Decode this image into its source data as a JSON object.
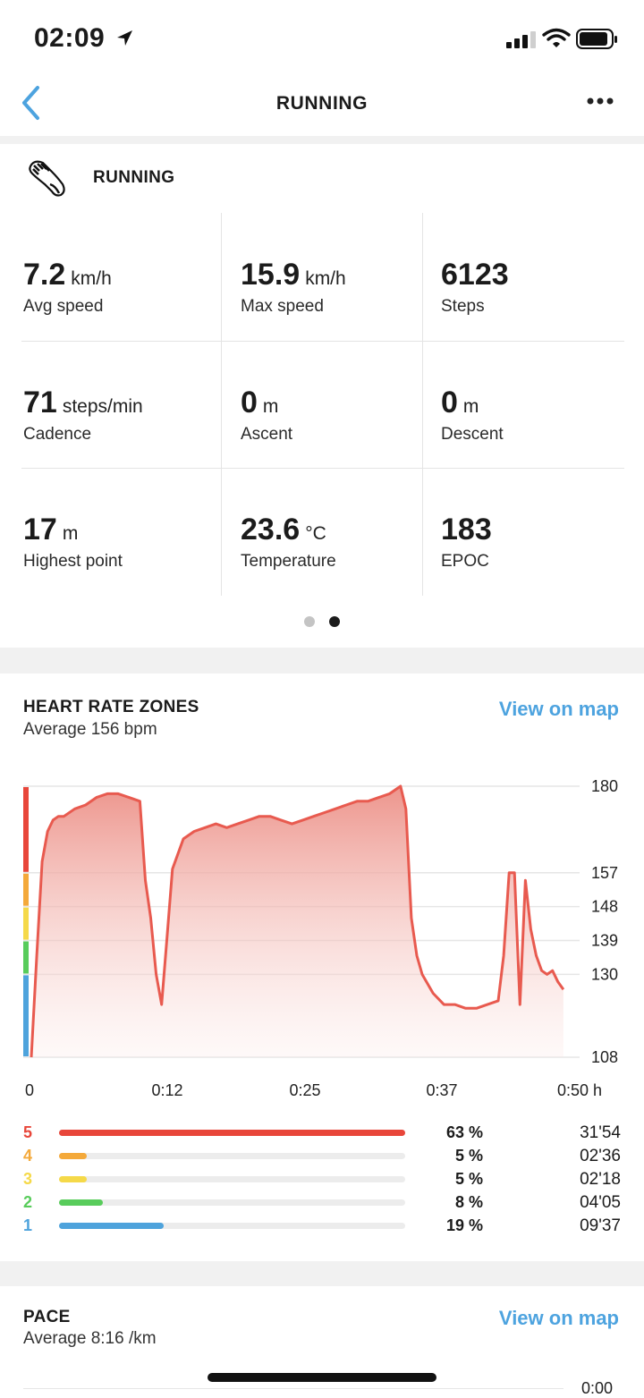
{
  "status_bar": {
    "time": "02:09"
  },
  "header": {
    "title": "RUNNING"
  },
  "activity": {
    "name": "RUNNING"
  },
  "stats": [
    {
      "value": "7.2",
      "unit": "km/h",
      "label": "Avg speed"
    },
    {
      "value": "15.9",
      "unit": "km/h",
      "label": "Max speed"
    },
    {
      "value": "6123",
      "unit": "",
      "label": "Steps"
    },
    {
      "value": "71",
      "unit": "steps/min",
      "label": "Cadence"
    },
    {
      "value": "0",
      "unit": "m",
      "label": "Ascent"
    },
    {
      "value": "0",
      "unit": "m",
      "label": "Descent"
    },
    {
      "value": "17",
      "unit": "m",
      "label": "Highest point"
    },
    {
      "value": "23.6",
      "unit": "°C",
      "label": "Temperature"
    },
    {
      "value": "183",
      "unit": "",
      "label": "EPOC"
    }
  ],
  "pager": {
    "count": 2,
    "active": 1
  },
  "heart_rate": {
    "title": "HEART RATE ZONES",
    "average": "Average 156 bpm",
    "view_on_map": "View on map",
    "zones": [
      {
        "zone": "5",
        "percent": "63 %",
        "fraction": 0.63,
        "time": "31'54",
        "color": "#e8463a"
      },
      {
        "zone": "4",
        "percent": "5 %",
        "fraction": 0.05,
        "time": "02'36",
        "color": "#f4a93a"
      },
      {
        "zone": "3",
        "percent": "5 %",
        "fraction": 0.05,
        "time": "02'18",
        "color": "#f5d949"
      },
      {
        "zone": "2",
        "percent": "8 %",
        "fraction": 0.08,
        "time": "04'05",
        "color": "#58cc5b"
      },
      {
        "zone": "1",
        "percent": "19 %",
        "fraction": 0.19,
        "time": "09'37",
        "color": "#4ea3dc"
      }
    ]
  },
  "pace": {
    "title": "PACE",
    "average": "Average 8:16 /km",
    "view_on_map": "View on map",
    "y_top_label": "0:00"
  },
  "chart_data": {
    "type": "area",
    "xlabel": "",
    "ylabel": "",
    "x_ticks": [
      "0",
      "0:12",
      "0:25",
      "0:37",
      "0:50 h"
    ],
    "xlim": [
      0,
      50
    ],
    "y_ticks": [
      "180",
      "157",
      "148",
      "139",
      "130",
      "108"
    ],
    "ylim": [
      108,
      180
    ],
    "zone_boundaries": [
      108,
      130,
      139,
      148,
      157,
      180
    ],
    "line_color": "#e85a4f",
    "series": [
      {
        "x": [
          0,
          0.5,
          1,
          1.5,
          2,
          2.5,
          3,
          4,
          5,
          6,
          7,
          8,
          9,
          10,
          10.5,
          11,
          11.5,
          12,
          12.5,
          13,
          14,
          15,
          16,
          17,
          18,
          19,
          20,
          21,
          22,
          23,
          24,
          25,
          26,
          27,
          28,
          29,
          30,
          31,
          32,
          33,
          34,
          34.5,
          35,
          35.5,
          36,
          37,
          38,
          39,
          40,
          41,
          42,
          43,
          43.5,
          44,
          44.5,
          45,
          45.5,
          46,
          46.5,
          47,
          47.5,
          48,
          48.5,
          49
        ],
        "y": [
          108,
          135,
          160,
          168,
          171,
          172,
          172,
          174,
          175,
          177,
          178,
          178,
          177,
          176,
          155,
          145,
          130,
          122,
          140,
          158,
          166,
          168,
          169,
          170,
          169,
          170,
          171,
          172,
          172,
          171,
          170,
          171,
          172,
          173,
          174,
          175,
          176,
          176,
          177,
          178,
          180,
          174,
          145,
          135,
          130,
          125,
          122,
          122,
          121,
          121,
          122,
          123,
          135,
          157,
          157,
          122,
          155,
          142,
          135,
          131,
          130,
          131,
          128,
          126
        ]
      }
    ]
  }
}
